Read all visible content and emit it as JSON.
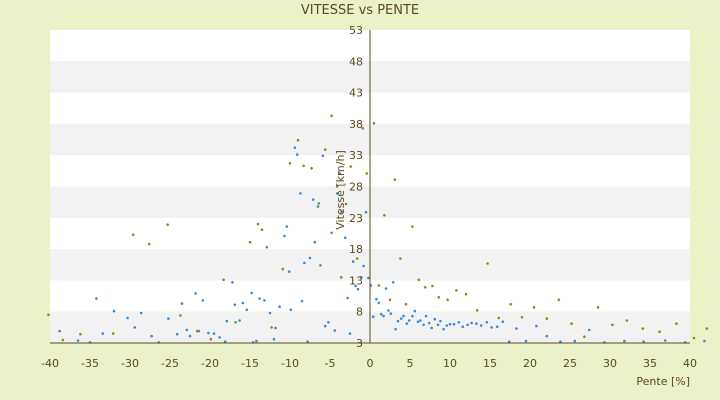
{
  "chart_data": {
    "type": "scatter",
    "title": "VITESSE vs PENTE",
    "xlabel": "Pente [%]",
    "ylabel": "Vitesse [km/h]",
    "xlim": [
      -40,
      40
    ],
    "ylim": [
      3,
      53
    ],
    "x_ticks": [
      "-40",
      "-35",
      "-30",
      "-25",
      "-20",
      "-15",
      "-10",
      "-5",
      "0",
      "5",
      "10",
      "15",
      "20",
      "25",
      "30",
      "35",
      "40"
    ],
    "y_ticks": [
      "3",
      "8",
      "13",
      "18",
      "23",
      "28",
      "33",
      "38",
      "43",
      "48",
      "53"
    ],
    "grid": "horizontal bands",
    "colors": {
      "background": "#ecf2c8",
      "band_light": "#ffffff",
      "band_dark": "#f2f2f2",
      "axis": "#5a4a1e",
      "series_blue": "#3a8ad8",
      "series_olive": "#8a8a1a"
    },
    "series": [
      {
        "color_key": "series_blue",
        "points": [
          [
            -38.8,
            4.9
          ],
          [
            -36.5,
            3.4
          ],
          [
            -35.0,
            3.1
          ],
          [
            -33.4,
            4.5
          ],
          [
            -32.0,
            8.1
          ],
          [
            -30.3,
            7.0
          ],
          [
            -29.4,
            5.5
          ],
          [
            -28.6,
            7.8
          ],
          [
            -27.3,
            4.1
          ],
          [
            -26.4,
            3.1
          ],
          [
            -25.2,
            6.9
          ],
          [
            -24.1,
            4.4
          ],
          [
            -23.5,
            9.3
          ],
          [
            -22.9,
            5.1
          ],
          [
            -22.5,
            4.1
          ],
          [
            -21.8,
            10.9
          ],
          [
            -21.4,
            4.9
          ],
          [
            -20.9,
            9.8
          ],
          [
            -20.2,
            4.6
          ],
          [
            -19.5,
            4.5
          ],
          [
            -18.8,
            3.9
          ],
          [
            -18.1,
            3.2
          ],
          [
            -17.9,
            6.5
          ],
          [
            -17.2,
            12.7
          ],
          [
            -16.9,
            9.1
          ],
          [
            -16.3,
            6.6
          ],
          [
            -15.9,
            9.4
          ],
          [
            -15.4,
            8.3
          ],
          [
            -14.8,
            11.0
          ],
          [
            -14.6,
            3.1
          ],
          [
            -14.2,
            3.3
          ],
          [
            -13.8,
            10.1
          ],
          [
            -13.2,
            9.8
          ],
          [
            -12.9,
            18.3
          ],
          [
            -12.5,
            7.8
          ],
          [
            -12.0,
            3.6
          ],
          [
            -11.8,
            5.4
          ],
          [
            -11.3,
            8.8
          ],
          [
            -10.7,
            20.1
          ],
          [
            -10.4,
            21.6
          ],
          [
            -10.1,
            14.4
          ],
          [
            -9.9,
            8.3
          ],
          [
            -9.4,
            34.2
          ],
          [
            -9.1,
            33.1
          ],
          [
            -8.7,
            26.9
          ],
          [
            -8.5,
            9.7
          ],
          [
            -8.2,
            15.8
          ],
          [
            -7.8,
            3.2
          ],
          [
            -7.5,
            16.6
          ],
          [
            -7.1,
            25.9
          ],
          [
            -6.9,
            19.1
          ],
          [
            -6.5,
            24.8
          ],
          [
            -6.2,
            15.4
          ],
          [
            -5.9,
            32.9
          ],
          [
            -5.6,
            5.7
          ],
          [
            -5.2,
            6.3
          ],
          [
            -4.8,
            20.6
          ],
          [
            -4.4,
            5.0
          ],
          [
            -4.1,
            26.9
          ],
          [
            -3.8,
            30.1
          ],
          [
            -3.5,
            24.0
          ],
          [
            -3.1,
            19.8
          ],
          [
            -2.8,
            10.2
          ],
          [
            -2.5,
            4.5
          ],
          [
            -2.1,
            16.0
          ],
          [
            -1.8,
            12.1
          ],
          [
            -1.5,
            11.6
          ],
          [
            -1.1,
            13.5
          ],
          [
            -0.8,
            15.3
          ],
          [
            -0.5,
            23.9
          ],
          [
            -0.2,
            13.4
          ],
          [
            0.1,
            12.2
          ],
          [
            0.4,
            7.2
          ],
          [
            0.8,
            10.0
          ],
          [
            1.1,
            9.4
          ],
          [
            1.4,
            7.6
          ],
          [
            1.7,
            7.3
          ],
          [
            2.0,
            11.7
          ],
          [
            2.3,
            8.2
          ],
          [
            2.6,
            7.7
          ],
          [
            2.9,
            12.7
          ],
          [
            3.2,
            5.2
          ],
          [
            3.5,
            6.5
          ],
          [
            3.9,
            6.9
          ],
          [
            4.2,
            7.3
          ],
          [
            4.6,
            6.1
          ],
          [
            4.9,
            6.6
          ],
          [
            5.3,
            7.3
          ],
          [
            5.6,
            8.1
          ],
          [
            6.0,
            6.4
          ],
          [
            6.3,
            6.6
          ],
          [
            6.7,
            5.9
          ],
          [
            7.0,
            7.3
          ],
          [
            7.4,
            6.2
          ],
          [
            7.7,
            5.4
          ],
          [
            8.1,
            6.8
          ],
          [
            8.5,
            5.9
          ],
          [
            8.8,
            6.5
          ],
          [
            9.2,
            5.2
          ],
          [
            9.6,
            5.8
          ],
          [
            10.0,
            6.0
          ],
          [
            10.5,
            6.0
          ],
          [
            11.1,
            6.3
          ],
          [
            11.6,
            5.6
          ],
          [
            12.2,
            5.9
          ],
          [
            12.7,
            6.2
          ],
          [
            13.3,
            6.1
          ],
          [
            13.9,
            5.8
          ],
          [
            14.6,
            6.3
          ],
          [
            15.2,
            5.5
          ],
          [
            15.9,
            5.6
          ],
          [
            16.6,
            6.4
          ],
          [
            17.4,
            3.2
          ],
          [
            18.3,
            5.3
          ],
          [
            19.5,
            3.3
          ],
          [
            20.8,
            5.7
          ],
          [
            22.1,
            4.1
          ],
          [
            23.8,
            3.2
          ],
          [
            25.6,
            3.3
          ],
          [
            27.4,
            5.1
          ],
          [
            29.3,
            3.1
          ],
          [
            31.8,
            3.3
          ],
          [
            34.2,
            3.2
          ],
          [
            36.9,
            3.4
          ],
          [
            39.4,
            3.1
          ],
          [
            41.8,
            3.3
          ]
        ]
      },
      {
        "color_key": "series_olive",
        "points": [
          [
            -40.2,
            7.5
          ],
          [
            -38.4,
            3.5
          ],
          [
            -36.2,
            4.4
          ],
          [
            -34.2,
            10.1
          ],
          [
            -32.1,
            4.5
          ],
          [
            -29.6,
            20.3
          ],
          [
            -27.6,
            18.8
          ],
          [
            -25.3,
            21.9
          ],
          [
            -23.7,
            7.4
          ],
          [
            -21.6,
            4.9
          ],
          [
            -19.9,
            3.6
          ],
          [
            -18.3,
            13.1
          ],
          [
            -16.8,
            6.3
          ],
          [
            -15.0,
            19.1
          ],
          [
            -14.0,
            22.0
          ],
          [
            -13.5,
            21.1
          ],
          [
            -12.3,
            5.5
          ],
          [
            -10.9,
            14.8
          ],
          [
            -10.0,
            31.7
          ],
          [
            -9.0,
            35.4
          ],
          [
            -8.3,
            31.3
          ],
          [
            -7.3,
            30.9
          ],
          [
            -6.4,
            25.3
          ],
          [
            -5.6,
            33.9
          ],
          [
            -4.8,
            39.3
          ],
          [
            -4.1,
            28.0
          ],
          [
            -3.6,
            13.5
          ],
          [
            -3.0,
            25.2
          ],
          [
            -2.4,
            31.2
          ],
          [
            -1.6,
            16.5
          ],
          [
            -0.9,
            37.3
          ],
          [
            -0.4,
            30.1
          ],
          [
            0.5,
            38.1
          ],
          [
            1.1,
            12.2
          ],
          [
            1.8,
            23.4
          ],
          [
            2.5,
            9.9
          ],
          [
            3.1,
            29.1
          ],
          [
            3.8,
            16.5
          ],
          [
            4.5,
            9.2
          ],
          [
            5.3,
            21.6
          ],
          [
            6.1,
            13.1
          ],
          [
            6.9,
            11.9
          ],
          [
            7.8,
            12.1
          ],
          [
            8.6,
            10.3
          ],
          [
            9.7,
            9.9
          ],
          [
            10.8,
            11.4
          ],
          [
            12.0,
            10.8
          ],
          [
            13.4,
            8.2
          ],
          [
            14.7,
            15.7
          ],
          [
            16.1,
            7.0
          ],
          [
            17.6,
            9.2
          ],
          [
            19.0,
            7.1
          ],
          [
            20.5,
            8.7
          ],
          [
            22.1,
            6.9
          ],
          [
            23.6,
            9.9
          ],
          [
            25.2,
            6.1
          ],
          [
            26.8,
            4.0
          ],
          [
            28.5,
            8.7
          ],
          [
            30.3,
            5.9
          ],
          [
            32.1,
            6.6
          ],
          [
            34.1,
            5.3
          ],
          [
            36.2,
            4.8
          ],
          [
            38.3,
            6.1
          ],
          [
            40.5,
            3.8
          ],
          [
            42.1,
            5.3
          ]
        ]
      }
    ]
  }
}
